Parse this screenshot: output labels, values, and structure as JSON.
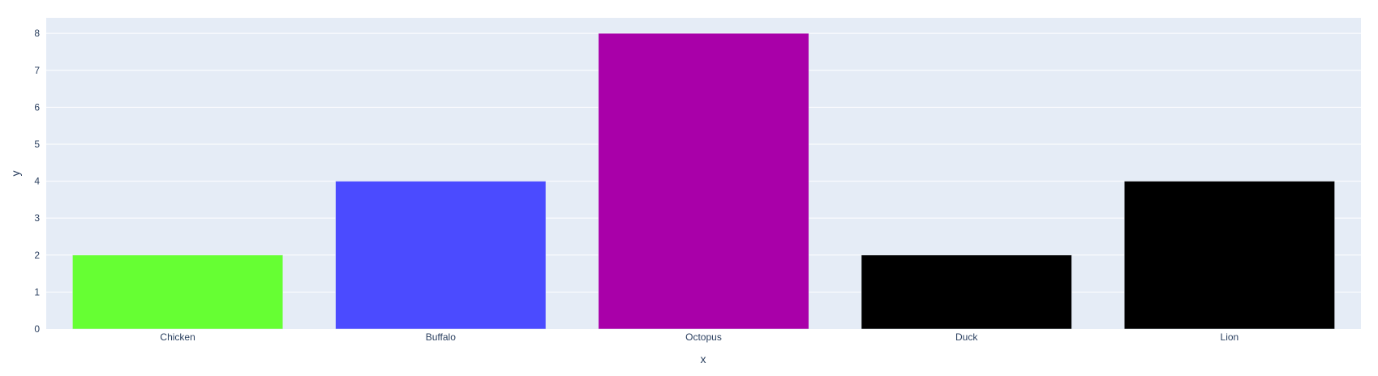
{
  "chart_data": {
    "type": "bar",
    "categories": [
      "Chicken",
      "Buffalo",
      "Octopus",
      "Duck",
      "Lion"
    ],
    "values": [
      2,
      4,
      8,
      2,
      4
    ],
    "colors": [
      "#66ff33",
      "#4b4bff",
      "#a900a9",
      "#000000",
      "#000000"
    ],
    "xlabel": "x",
    "ylabel": "y",
    "ylim": [
      0,
      8.42
    ],
    "yticks": [
      0,
      1,
      2,
      3,
      4,
      5,
      6,
      7,
      8
    ],
    "grid": true,
    "background": "#e5ecf6",
    "grid_color": "#ffffff"
  }
}
